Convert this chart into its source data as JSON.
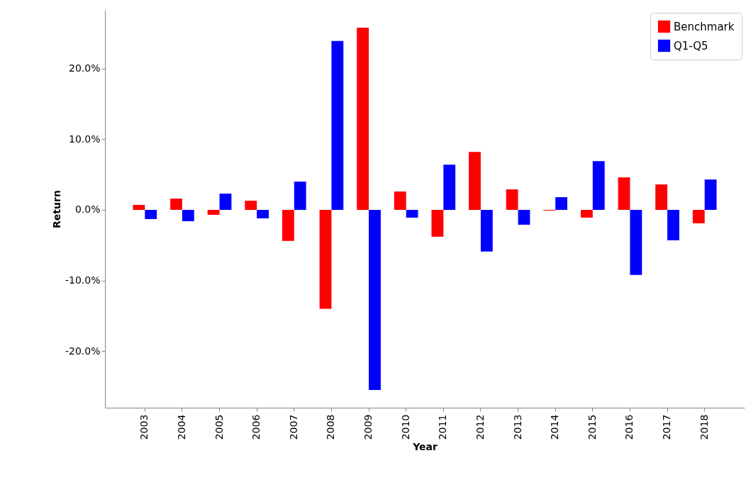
{
  "chart_data": {
    "type": "bar",
    "xlabel": "Year",
    "ylabel": "Return",
    "categories": [
      "2003",
      "2004",
      "2005",
      "2006",
      "2007",
      "2008",
      "2009",
      "2010",
      "2011",
      "2012",
      "2013",
      "2014",
      "2015",
      "2016",
      "2017",
      "2018"
    ],
    "series": [
      {
        "name": "Benchmark",
        "color": "#ff0000",
        "values": [
          0.7,
          1.6,
          -0.7,
          1.3,
          -4.4,
          -14.0,
          25.8,
          2.6,
          -3.8,
          8.2,
          2.9,
          -0.1,
          -1.1,
          4.6,
          3.6,
          -1.9
        ]
      },
      {
        "name": "Q1-Q5",
        "color": "#0000ff",
        "values": [
          -1.3,
          -1.6,
          2.3,
          -1.2,
          4.0,
          23.9,
          -25.5,
          -1.1,
          6.4,
          -5.9,
          -2.1,
          1.8,
          6.9,
          -9.2,
          -4.3,
          4.3
        ]
      }
    ],
    "ylim": [
      -28,
      28.3
    ],
    "yticks": [
      {
        "value": -20,
        "label": "-20.0%"
      },
      {
        "value": -10,
        "label": "-10.0%"
      },
      {
        "value": 0,
        "label": "0.0%"
      },
      {
        "value": 10,
        "label": "10.0%"
      },
      {
        "value": 20,
        "label": "20.0%"
      }
    ],
    "grid": false,
    "legend": "top right"
  }
}
